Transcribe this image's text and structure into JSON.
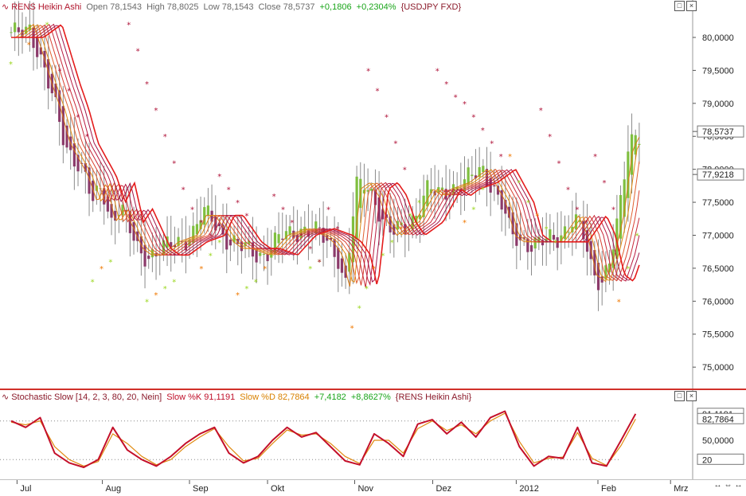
{
  "main_header": {
    "icon": "line-series-icon",
    "symbol_name": "RENS Heikin Ashi",
    "open_label": "Open",
    "open": "78,1543",
    "high_label": "High",
    "high": "78,8025",
    "low_label": "Low",
    "low": "78,1543",
    "close_label": "Close",
    "close": "78,5737",
    "change": "+0,1806",
    "change_pct": "+0,2304%",
    "instrument": "{USDJPY FXD}"
  },
  "sub_header": {
    "icon": "line-series-icon",
    "indicator": "Stochastic Slow [14, 2, 3, 80, 20, Nein]",
    "k_label": "Slow %K",
    "k_value": "91,1191",
    "d_label": "Slow %D",
    "d_value": "82,7864",
    "change": "+7,4182",
    "change_pct": "+8,8627%",
    "source": "{RENS Heikin Ashi}"
  },
  "colors": {
    "candle_up": "#7fbf3f",
    "candle_down": "#8b3a6a",
    "sar_a": "#b0143a",
    "sar_b": "#f07800",
    "sar_c": "#9ad61e",
    "ma_fast": "#e41c1c",
    "ma_slow": "#d97a14",
    "stoch_k": "#c4102a",
    "stoch_d": "#e08a10",
    "separator": "#d0302a"
  },
  "chart_data": [
    {
      "type": "candlestick",
      "title": "RENS Heikin Ashi",
      "y_ticks": [
        "80,0000",
        "79,5000",
        "79,0000",
        "78,5000",
        "78,0000",
        "77,5000",
        "77,0000",
        "76,5000",
        "76,0000",
        "75,5000",
        "75,0000"
      ],
      "ylim": [
        74.7,
        80.35
      ],
      "x_labels": [
        "Jul",
        "Aug",
        "Sep",
        "Okt",
        "Nov",
        "Dez",
        "2012",
        "Feb",
        "Mrz"
      ],
      "x_label_weeks": [
        0.5,
        5.2,
        10.0,
        14.3,
        19.1,
        23.4,
        28.0,
        32.5,
        36.5
      ],
      "current_price_label": "78,5737",
      "current_price": 78.5737,
      "ma_price_label": "77,9218",
      "ma_price": 77.9218,
      "close_series_weeks": [
        0,
        1,
        2,
        2.5,
        3,
        4,
        4.5,
        5,
        5.5,
        6,
        7,
        7.5,
        8,
        9,
        10,
        10.5,
        11,
        12,
        12.5,
        13,
        14,
        15,
        16,
        17,
        17.5,
        18,
        18.4,
        19,
        19.5,
        20,
        20.5,
        21,
        22,
        23,
        23.5,
        24,
        25,
        26,
        27,
        27.5,
        28,
        29,
        30,
        31,
        31.5,
        32,
        32.5,
        33,
        33.5,
        34,
        34.5
      ],
      "close_series": [
        80.0,
        80.2,
        79.3,
        78.9,
        78.4,
        77.9,
        77.5,
        77.8,
        77.2,
        77.4,
        76.8,
        76.7,
        76.7,
        76.9,
        77.0,
        77.3,
        77.3,
        76.9,
        76.8,
        76.8,
        76.7,
        77.0,
        77.1,
        77.0,
        76.9,
        76.7,
        76.2,
        77.7,
        77.8,
        77.6,
        77.2,
        77.0,
        77.2,
        77.7,
        77.6,
        77.7,
        77.8,
        78.0,
        77.5,
        77.0,
        76.9,
        76.9,
        76.9,
        77.3,
        77.0,
        76.4,
        76.3,
        76.7,
        77.3,
        78.3,
        78.57
      ],
      "sar_up_weeks": [
        0,
        1,
        2,
        4.5,
        5,
        5.5,
        7.5,
        8,
        8.5,
        9,
        10.5,
        11,
        11.5,
        12.5,
        13,
        13.5,
        14,
        16.5,
        17,
        18.8,
        19.2,
        19.6,
        20,
        20.5,
        21,
        21.5,
        22,
        22.5,
        25,
        25.5,
        26,
        27.5,
        28,
        28.5,
        29,
        29.5,
        30,
        33.5,
        34,
        34.5
      ],
      "sar_up": [
        79.6,
        79.9,
        80.2,
        76.3,
        76.5,
        76.6,
        76.0,
        76.1,
        76.2,
        76.3,
        76.5,
        76.7,
        76.9,
        76.1,
        76.2,
        76.3,
        76.5,
        76.5,
        76.6,
        75.6,
        75.9,
        76.2,
        76.5,
        76.7,
        76.9,
        77.1,
        77.3,
        77.5,
        77.2,
        77.4,
        77.7,
        78.2,
        77.8,
        77.5,
        77.3,
        77.1,
        76.9,
        76.0,
        76.5,
        77.0
      ],
      "sar_down_weeks": [
        2.7,
        3.2,
        3.7,
        4.2,
        6.5,
        7,
        7.5,
        8,
        8.5,
        9,
        9.5,
        10,
        10.5,
        11,
        11.5,
        12,
        12.5,
        13,
        14.5,
        15,
        15.5,
        16,
        16.5,
        17,
        17.5,
        18,
        19.7,
        20.2,
        20.7,
        21.2,
        21.7,
        23.5,
        24,
        24.5,
        25,
        25.5,
        26,
        26.5,
        27,
        29.2,
        29.7,
        30.2,
        30.7,
        31.2,
        31.7,
        32.2,
        32.7,
        33.2
      ],
      "sar_down": [
        79.5,
        79.2,
        78.8,
        78.5,
        80.2,
        79.8,
        79.3,
        78.9,
        78.5,
        78.1,
        77.7,
        77.4,
        77.2,
        77.0,
        77.9,
        77.7,
        77.5,
        77.3,
        77.6,
        77.4,
        77.2,
        77.0,
        76.8,
        76.6,
        77.4,
        77.1,
        79.5,
        79.2,
        78.8,
        78.4,
        78.0,
        79.5,
        79.3,
        79.1,
        79.0,
        78.8,
        78.6,
        78.4,
        78.2,
        78.9,
        78.5,
        78.1,
        77.7,
        77.4,
        77.2,
        78.2,
        77.8,
        77.4
      ]
    },
    {
      "type": "line",
      "title": "Stochastic Slow [14, 2, 3, 80, 20, Nein]",
      "y_ticks": [
        "50,0000",
        "20"
      ],
      "ylim": [
        -8,
        108
      ],
      "value_labels": [
        "91,1191",
        "82,7864",
        "20"
      ],
      "reference_lines": [
        80,
        20
      ],
      "x_weeks": [
        0,
        0.8,
        1.6,
        2.4,
        3.2,
        4,
        4.8,
        5.6,
        6.4,
        7.2,
        8,
        8.8,
        9.6,
        10.4,
        11.2,
        12,
        12.8,
        13.6,
        14.4,
        15.2,
        16,
        16.8,
        17.6,
        18.4,
        19.2,
        20,
        20.8,
        21.6,
        22.4,
        23.2,
        24,
        24.8,
        25.6,
        26.4,
        27.2,
        28,
        28.8,
        29.6,
        30.4,
        31.2,
        32,
        32.8,
        33.6,
        34.4
      ],
      "series": [
        {
          "name": "Slow %K",
          "values": [
            80,
            70,
            85,
            30,
            15,
            8,
            20,
            70,
            35,
            20,
            10,
            25,
            45,
            60,
            70,
            30,
            15,
            25,
            50,
            70,
            55,
            62,
            40,
            18,
            12,
            60,
            45,
            25,
            75,
            82,
            60,
            78,
            55,
            85,
            95,
            40,
            10,
            25,
            22,
            70,
            15,
            10,
            50,
            91
          ]
        },
        {
          "name": "Slow %D",
          "values": [
            78,
            74,
            80,
            40,
            20,
            10,
            17,
            60,
            45,
            25,
            12,
            20,
            40,
            55,
            68,
            40,
            18,
            22,
            45,
            66,
            58,
            60,
            45,
            25,
            14,
            50,
            50,
            30,
            68,
            80,
            65,
            74,
            60,
            80,
            92,
            48,
            15,
            22,
            24,
            62,
            22,
            11,
            42,
            83
          ]
        }
      ]
    }
  ]
}
